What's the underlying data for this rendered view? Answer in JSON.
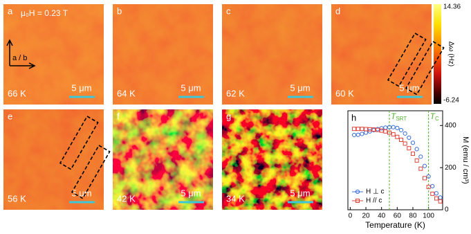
{
  "field": "μ₀H = 0.23 T",
  "axis_label": "a / b",
  "panels": [
    {
      "letter": "a",
      "temperature": "66 K",
      "scale_bar": "5 μm"
    },
    {
      "letter": "b",
      "temperature": "64 K",
      "scale_bar": "5 μm"
    },
    {
      "letter": "c",
      "temperature": "62 K",
      "scale_bar": "5 μm"
    },
    {
      "letter": "d",
      "temperature": "60 K",
      "scale_bar": "5 μm"
    },
    {
      "letter": "e",
      "temperature": "56 K",
      "scale_bar": "5 μm"
    },
    {
      "letter": "f",
      "temperature": "42 K",
      "scale_bar": "5 μm"
    },
    {
      "letter": "g",
      "temperature": "34 K",
      "scale_bar": "5 μm"
    }
  ],
  "colorbar": {
    "max": 14.36,
    "min": -6.24,
    "label": "Δω (Hz)"
  },
  "chart_data": {
    "type": "scatter",
    "panel": "h",
    "xlabel": "Temperature (K)",
    "ylabel": "M (emu / cm³)",
    "x": [
      5,
      10,
      15,
      20,
      25,
      30,
      35,
      40,
      45,
      50,
      55,
      60,
      65,
      70,
      75,
      80,
      85,
      90,
      95,
      100,
      105,
      110,
      115
    ],
    "series": [
      {
        "name": "H ⊥ c",
        "color": "#3a6fd8",
        "marker": "circle",
        "values": [
          355,
          356,
          360,
          366,
          372,
          378,
          383,
          387,
          390,
          392,
          392,
          388,
          378,
          362,
          342,
          318,
          288,
          252,
          208,
          158,
          112,
          78,
          58
        ]
      },
      {
        "name": "H // c",
        "color": "#e0413a",
        "marker": "square",
        "values": [
          384,
          384,
          384,
          383,
          382,
          381,
          379,
          376,
          372,
          366,
          358,
          346,
          332,
          314,
          292,
          266,
          234,
          195,
          150,
          108,
          76,
          54,
          40
        ]
      }
    ],
    "annotations": [
      {
        "symbol": "T",
        "sub": "SRT",
        "x": 50
      },
      {
        "symbol": "T",
        "sub": "C",
        "x": 100
      }
    ],
    "xlim": [
      -3,
      118
    ],
    "ylim": [
      0,
      470
    ],
    "xticks": [
      0,
      20,
      40,
      60,
      80,
      100
    ],
    "yticks": [
      0,
      200,
      400
    ]
  }
}
